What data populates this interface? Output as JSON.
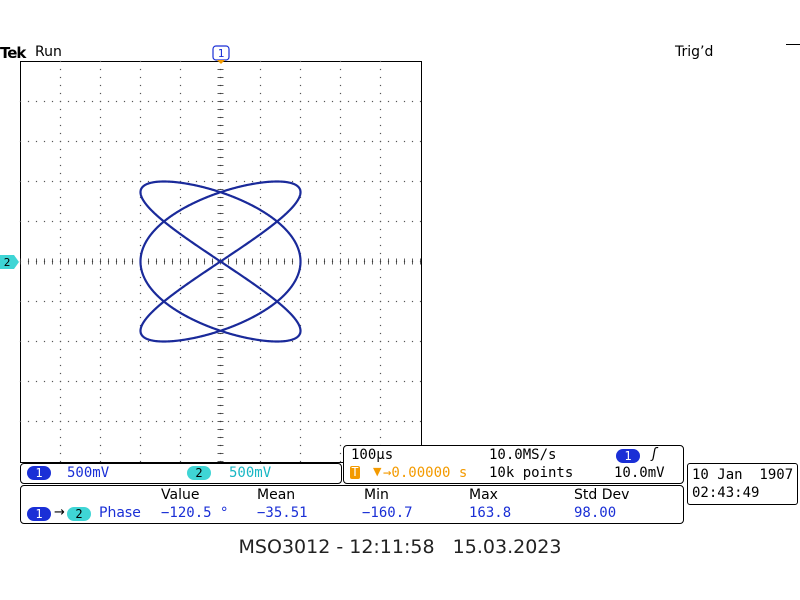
{
  "header": {
    "brand": "Tek",
    "run_status": "Run",
    "trigger_status": "Trig’d",
    "ch1_marker": "1",
    "ch2_marker": "2"
  },
  "channels": {
    "ch1": {
      "badge": "1",
      "scale": "500mV",
      "color": "#1a2fd6"
    },
    "ch2": {
      "badge": "2",
      "scale": "500mV",
      "color": "#3fd5d5"
    }
  },
  "timebase": {
    "time_per_div": "100µs",
    "sample_rate": "10.0MS/s",
    "trigger_position_icon": "T",
    "trigger_delay": "→0.00000 s",
    "record_length": "10k points",
    "trigger_channel": "1",
    "trigger_slope_icon": "rising-edge",
    "trigger_level": "10.0mV"
  },
  "datetime": {
    "date": "10 Jan  1907",
    "time": "02:43:49"
  },
  "measurement": {
    "source_a": "1",
    "arrow": "→",
    "source_b": "2",
    "type": "Phase",
    "headers": [
      "Value",
      "Mean",
      "Min",
      "Max",
      "Std Dev"
    ],
    "values": [
      "−120.5 °",
      "−35.51",
      "−160.7",
      "163.8",
      "98.00"
    ]
  },
  "caption": "MSO3012 - 12:11:58   15.03.2023",
  "trace": {
    "color": "#1a2a9a",
    "x_freq": 3,
    "y_freq": 2,
    "phase_deg": 0,
    "x_amplitude_div": 2.0,
    "y_amplitude_div": 2.0
  }
}
